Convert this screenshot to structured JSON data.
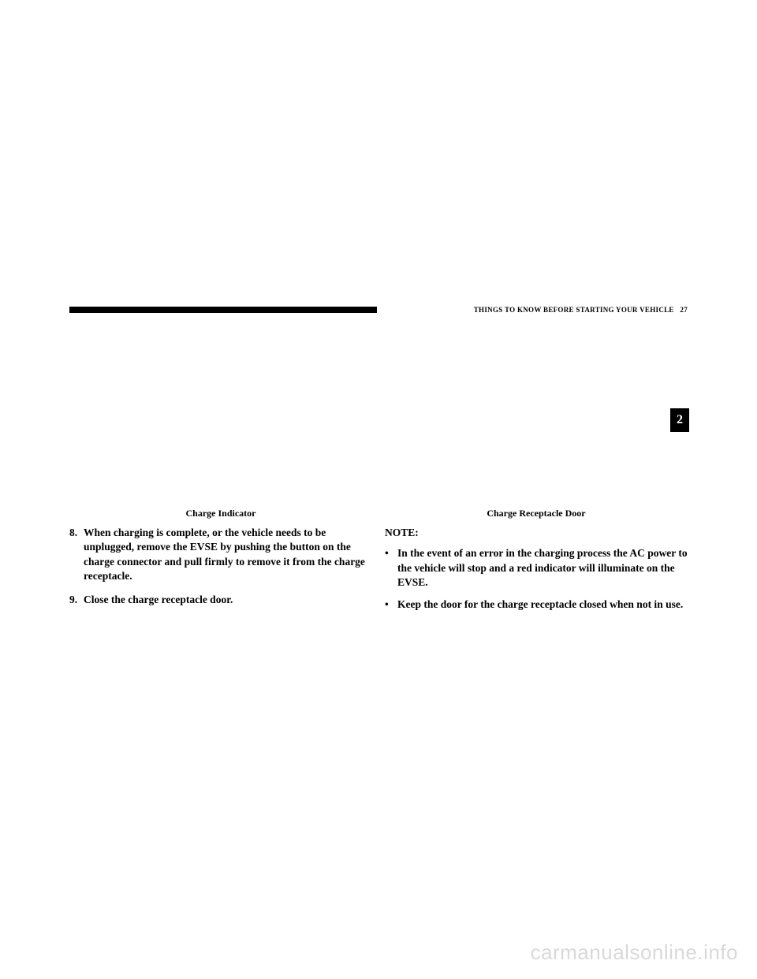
{
  "header": {
    "section_title": "THINGS TO KNOW BEFORE STARTING YOUR VEHICLE",
    "page_number": "27",
    "tab": "2"
  },
  "left_column": {
    "caption": "Charge Indicator",
    "items": [
      {
        "num": "8.",
        "text": "When charging is complete, or the vehicle needs to be unplugged, remove the EVSE by pushing the button on the charge connector and pull firmly to remove it from the charge receptacle."
      },
      {
        "num": "9.",
        "text": "Close the charge receptacle door."
      }
    ]
  },
  "right_column": {
    "caption": "Charge Receptacle Door",
    "note_label": "NOTE:",
    "bullets": [
      "In the event of an error in the charging process the AC power to the vehicle will stop and a red indicator will illuminate on the EVSE.",
      "Keep the door for the charge receptacle closed when not in use."
    ]
  },
  "watermark": "carmanualsonline.info"
}
